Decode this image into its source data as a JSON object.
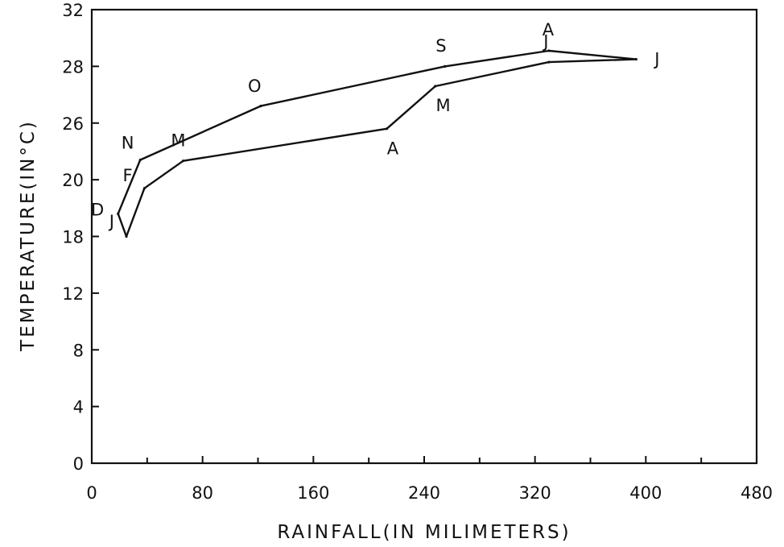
{
  "chart_data": {
    "type": "line",
    "title": "",
    "xlabel": "RAINFALL(IN MILIMETERS)",
    "ylabel": "TEMPERATURE(IN°C)",
    "x_ticks": [
      0,
      80,
      160,
      240,
      320,
      400,
      480
    ],
    "y_ticks": [
      0,
      4,
      8,
      12,
      18,
      20,
      26,
      28,
      32
    ],
    "xlim": [
      0,
      480
    ],
    "grid": false,
    "series": [
      {
        "points": [
          {
            "label": "J",
            "x": 25,
            "y": 18
          },
          {
            "label": "F",
            "x": 38,
            "y": 19.7
          },
          {
            "label": "M",
            "x": 66,
            "y": 22
          },
          {
            "label": "A",
            "x": 213,
            "y": 25.4
          },
          {
            "label": "M",
            "x": 248,
            "y": 27.3
          },
          {
            "label": "J",
            "x": 330,
            "y": 28.3
          },
          {
            "label": "J",
            "x": 393,
            "y": 28.5
          },
          {
            "label": "A",
            "x": 330,
            "y": 29.1
          },
          {
            "label": "S",
            "x": 255,
            "y": 28
          },
          {
            "label": "O",
            "x": 122,
            "y": 26.6
          },
          {
            "label": "N",
            "x": 35,
            "y": 22.1
          },
          {
            "label": "D",
            "x": 19,
            "y": 18.8
          }
        ],
        "closed": true
      }
    ]
  }
}
